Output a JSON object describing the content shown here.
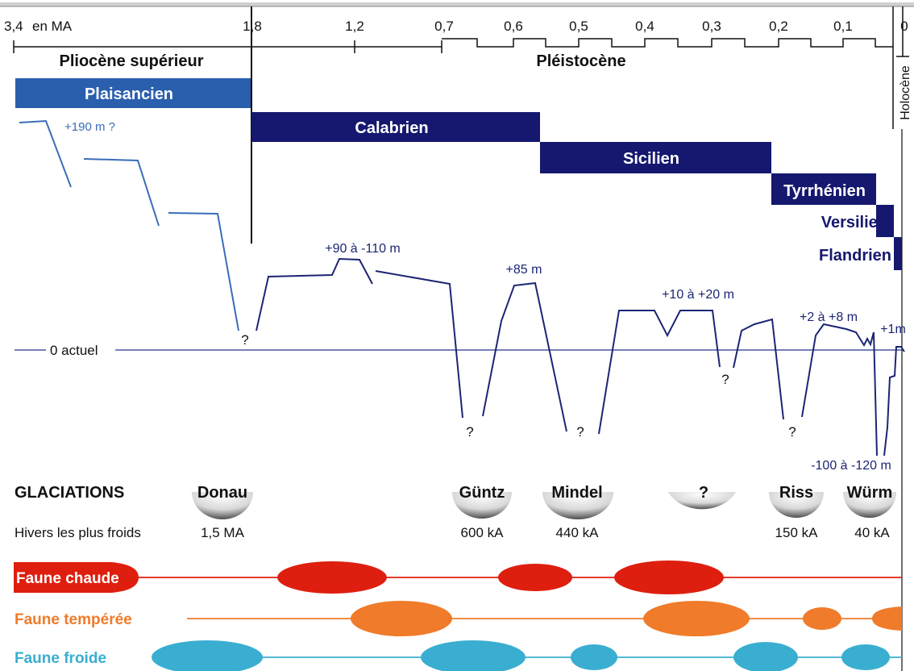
{
  "timeline": {
    "unit_label": "en MA",
    "ticks": [
      "3,4",
      "1,8",
      "1,2",
      "0,7",
      "0,6",
      "0,5",
      "0,4",
      "0,3",
      "0,2",
      "0,1",
      "0"
    ]
  },
  "epochs": {
    "pliocene": "Pliocène supérieur",
    "pleistocene": "Pléistocène",
    "holocene": "Holocène"
  },
  "stages": [
    "Plaisancien",
    "Calabrien",
    "Sicilien",
    "Tyrrhénien",
    "Versilien",
    "Flandrien"
  ],
  "sea_levels": {
    "plaisancien": "+190 m ?",
    "calabrien": "+90 à -110 m",
    "sicilien": "+85 m",
    "tyrrhenien": "+10 à +20 m",
    "versilien": "+2 à +8 m",
    "flandrien": "+1m",
    "low": "-100 à -120 m",
    "actuel": "0 actuel",
    "unknown": "?"
  },
  "glaciations": {
    "title": "GLACIATIONS",
    "row_label": "Hivers les plus froids",
    "names": [
      "Donau",
      "Güntz",
      "Mindel",
      "?",
      "Riss",
      "Würm"
    ],
    "ages": [
      "1,5 MA",
      "600 kA",
      "440 kA",
      "150 kA",
      "40 kA"
    ]
  },
  "fauna": {
    "chaude": "Faune chaude",
    "temperee": "Faune tempérée",
    "froide": "Faune froide"
  },
  "colors": {
    "plaisancien": "#2a5fae",
    "stage_dark": "#15186e",
    "sea_line": "#1c2575",
    "plio_line": "#3a6db8",
    "actuel_line": "#4a57a3",
    "chaude": "#de1f0f",
    "temperee": "#f07b2a",
    "froide": "#3aaed0"
  }
}
